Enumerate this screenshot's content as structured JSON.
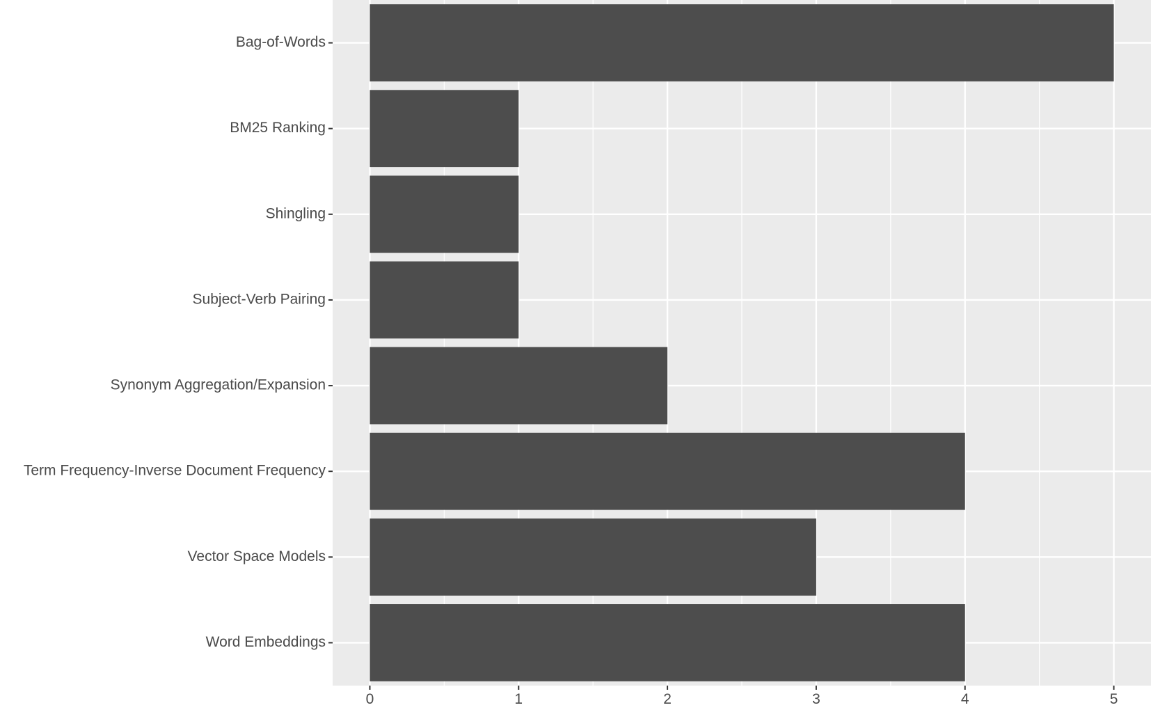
{
  "chart_data": {
    "type": "bar",
    "orientation": "horizontal",
    "title": "",
    "xlabel": "",
    "ylabel": "",
    "categories": [
      "Bag-of-Words",
      "BM25 Ranking",
      "Shingling",
      "Subject-Verb Pairing",
      "Synonym Aggregation/Expansion",
      "Term Frequency-Inverse Document Frequency",
      "Vector Space Models",
      "Word Embeddings"
    ],
    "values": [
      5,
      1,
      1,
      1,
      2,
      4,
      3,
      4
    ],
    "xlim": [
      -0.25,
      5.25
    ],
    "xticks": [
      0,
      1,
      2,
      3,
      4,
      5
    ],
    "grid": true,
    "legend": "none",
    "colors": {
      "panel": "#ebebeb",
      "grid": "#ffffff",
      "bar": "#4d4d4d",
      "text": "#4a4a4a",
      "tick": "#333333"
    }
  }
}
